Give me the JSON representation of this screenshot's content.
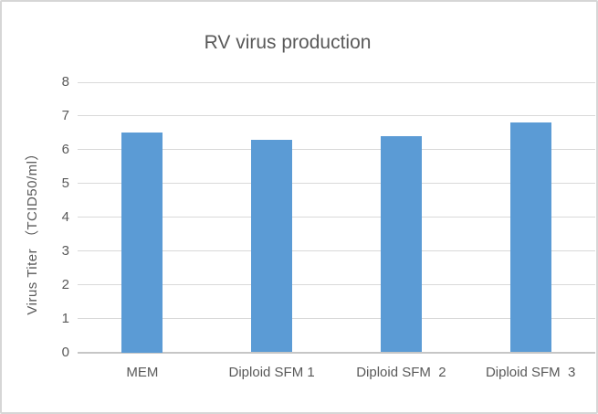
{
  "chart_data": {
    "type": "bar",
    "title": "RV virus production",
    "categories": [
      "MEM",
      "Diploid SFM 1",
      "Diploid SFM  2",
      "Diploid SFM  3"
    ],
    "values": [
      6.5,
      6.3,
      6.4,
      6.8
    ],
    "xlabel": "",
    "ylabel": "Virus Titer （TCID50/ml）",
    "ylim": [
      0,
      8
    ],
    "yticks": [
      0,
      1,
      2,
      3,
      4,
      5,
      6,
      7,
      8
    ],
    "grid": "horizontal gridlines on",
    "legend_position": "none",
    "colors": {
      "bar": "#5B9BD5",
      "gridline": "#D9D9D9",
      "axis_line": "#C6C6C6",
      "text": "#595959",
      "background": "#FFFFFF",
      "frame_border": "#D6D6D6"
    }
  }
}
